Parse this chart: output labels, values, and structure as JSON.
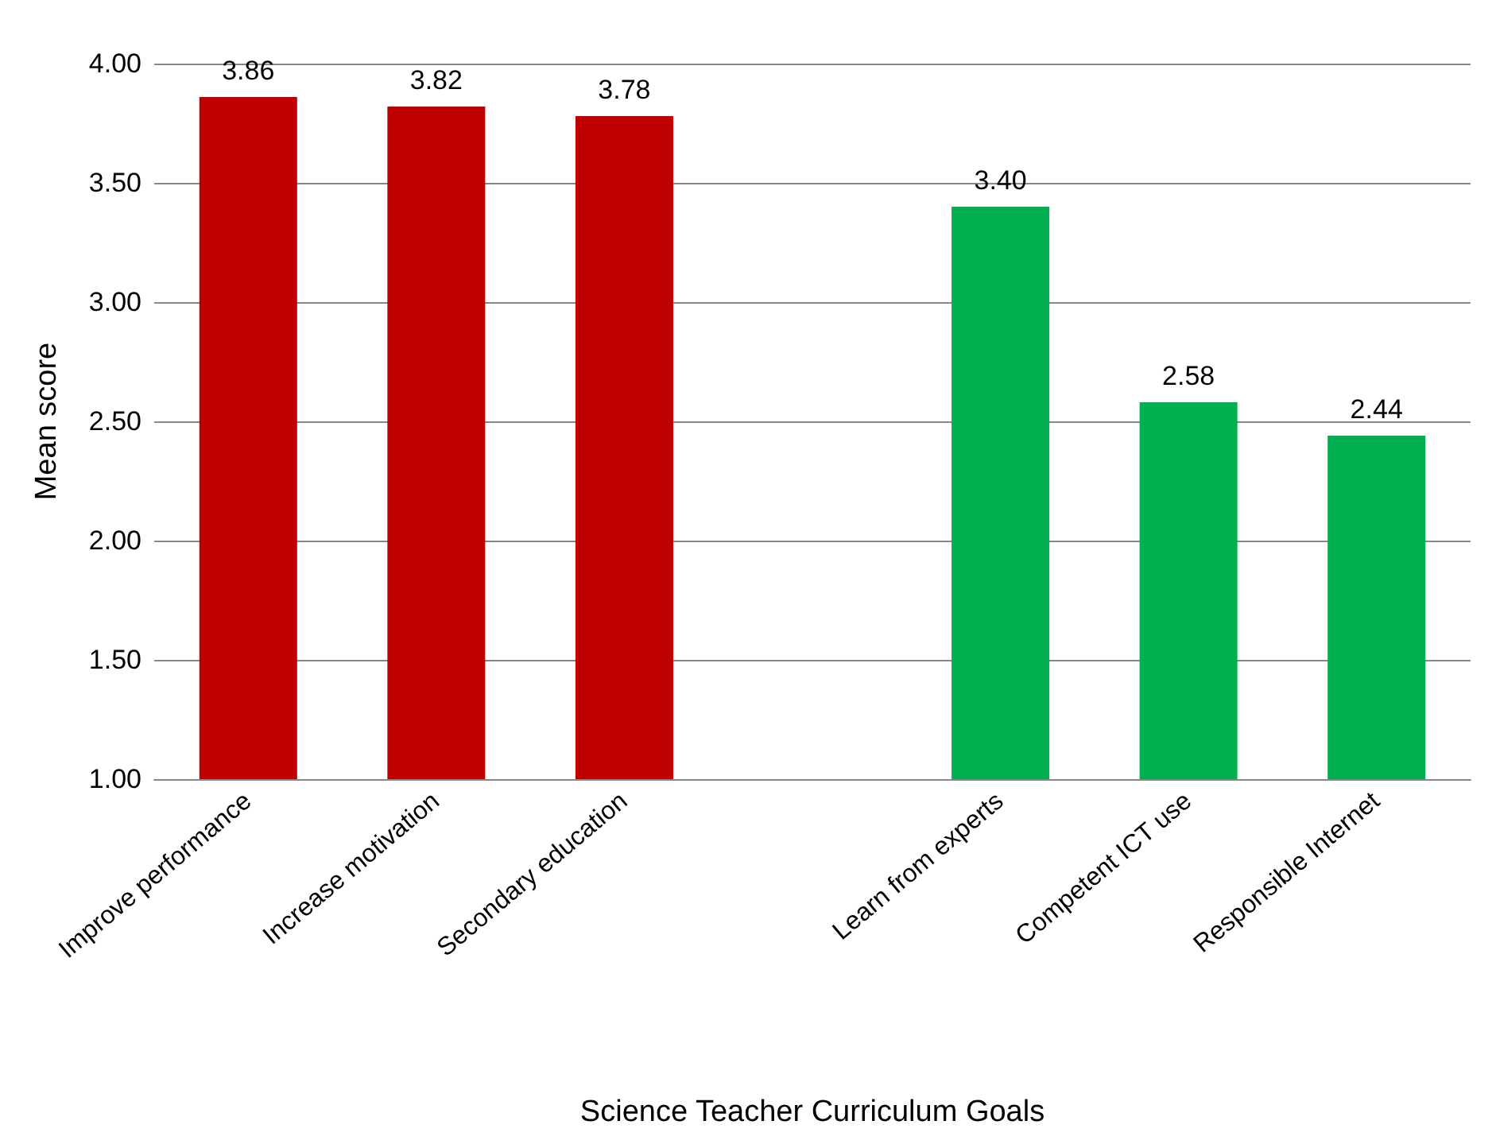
{
  "chart_data": {
    "type": "bar",
    "xlabel": "Science Teacher Curriculum Goals",
    "ylabel": "Mean score",
    "categories": [
      "Improve performance",
      "Increase motivation",
      "Secondary education",
      null,
      "Learn from experts",
      "Competent ICT use",
      "Responsible Internet"
    ],
    "values": [
      3.86,
      3.82,
      3.78,
      null,
      3.4,
      2.58,
      2.44
    ],
    "colors": [
      "#c00000",
      "#c00000",
      "#c00000",
      null,
      "#00b050",
      "#00b050",
      "#00b050"
    ],
    "value_labels": [
      "3.86",
      "3.82",
      "3.78",
      null,
      "3.40",
      "2.58",
      "2.44"
    ],
    "ylim": [
      1,
      4
    ],
    "yticks": [
      {
        "value": 1,
        "label": "1.00"
      },
      {
        "value": 1.5,
        "label": "1.50"
      },
      {
        "value": 2,
        "label": "2.00"
      },
      {
        "value": 2.5,
        "label": "2.50"
      },
      {
        "value": 3,
        "label": "3.00"
      },
      {
        "value": 3.5,
        "label": "3.50"
      },
      {
        "value": 4,
        "label": "4.00"
      }
    ],
    "grid": "y"
  }
}
